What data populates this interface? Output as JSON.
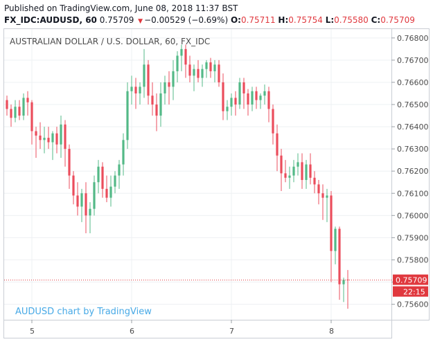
{
  "header": {
    "published": "Published on TradingView.com, June 08, 2018 11:37 BST",
    "symbol": "FX_IDC:AUDUSD, 60",
    "last": "0.75709",
    "change": "−0.00529 (−0.69%)",
    "o_label": "O:",
    "o_value": "0.75711",
    "h_label": "H:",
    "h_value": "0.75754",
    "l_label": "L:",
    "l_value": "0.75580",
    "c_label": "C:",
    "c_value": "0.75709"
  },
  "colors": {
    "up": "#53b987",
    "down": "#eb4d5c",
    "grid": "#eef0f3",
    "axis_text": "#4a4a4a",
    "price_label_bg": "#e0383e",
    "watermark": "#47a9e6"
  },
  "chart_data": {
    "type": "candlestick",
    "title": "AUSTRALIAN DOLLAR / U.S. DOLLAR, 60, FX_IDC",
    "watermark": "AUDUSD chart by TradingView",
    "ylim": [
      0.7553,
      0.7684
    ],
    "y_ticks": [
      0.756,
      0.757,
      0.758,
      0.759,
      0.76,
      0.761,
      0.762,
      0.763,
      0.764,
      0.765,
      0.766,
      0.767,
      0.768
    ],
    "y_tick_labels": [
      "0.75600",
      "0.75700",
      "0.75800",
      "0.75900",
      "0.76000",
      "0.76100",
      "0.76200",
      "0.76300",
      "0.76400",
      "0.76500",
      "0.76600",
      "0.76700",
      "0.76800"
    ],
    "x_ticks": [
      {
        "label": "5",
        "index": 6
      },
      {
        "label": "6",
        "index": 30
      },
      {
        "label": "7",
        "index": 54
      },
      {
        "label": "8",
        "index": 78
      }
    ],
    "last_price_label": "0.75709",
    "countdown_label": "22:15",
    "last_price": 0.75709,
    "candles": [
      [
        0.7652,
        0.7654,
        0.7645,
        0.7648
      ],
      [
        0.7648,
        0.765,
        0.764,
        0.7644
      ],
      [
        0.7644,
        0.7652,
        0.7642,
        0.7649
      ],
      [
        0.7649,
        0.7652,
        0.7643,
        0.7645
      ],
      [
        0.7645,
        0.7655,
        0.7643,
        0.7653
      ],
      [
        0.7653,
        0.7656,
        0.7645,
        0.7651
      ],
      [
        0.7651,
        0.7652,
        0.7632,
        0.7638
      ],
      [
        0.7638,
        0.764,
        0.7626,
        0.7636
      ],
      [
        0.7636,
        0.7642,
        0.763,
        0.7634
      ],
      [
        0.7634,
        0.764,
        0.7628,
        0.7635
      ],
      [
        0.7635,
        0.764,
        0.763,
        0.7633
      ],
      [
        0.7633,
        0.7638,
        0.7625,
        0.7637
      ],
      [
        0.7637,
        0.764,
        0.7628,
        0.7632
      ],
      [
        0.7632,
        0.7645,
        0.7626,
        0.7641
      ],
      [
        0.7641,
        0.7643,
        0.7622,
        0.763
      ],
      [
        0.763,
        0.7632,
        0.7612,
        0.7618
      ],
      [
        0.7618,
        0.762,
        0.7605,
        0.7609
      ],
      [
        0.7609,
        0.7615,
        0.76,
        0.7604
      ],
      [
        0.7604,
        0.7612,
        0.7597,
        0.761
      ],
      [
        0.761,
        0.7615,
        0.7592,
        0.76
      ],
      [
        0.76,
        0.7606,
        0.7592,
        0.7603
      ],
      [
        0.7603,
        0.7618,
        0.76,
        0.7615
      ],
      [
        0.7615,
        0.7625,
        0.761,
        0.7622
      ],
      [
        0.7622,
        0.7624,
        0.7608,
        0.7612
      ],
      [
        0.7612,
        0.7618,
        0.7606,
        0.7608
      ],
      [
        0.7608,
        0.7618,
        0.7604,
        0.7613
      ],
      [
        0.7613,
        0.762,
        0.761,
        0.7618
      ],
      [
        0.7618,
        0.7625,
        0.7612,
        0.7623
      ],
      [
        0.7623,
        0.7637,
        0.7618,
        0.7634
      ],
      [
        0.7634,
        0.766,
        0.763,
        0.7656
      ],
      [
        0.7656,
        0.7663,
        0.765,
        0.7658
      ],
      [
        0.7658,
        0.7662,
        0.7648,
        0.7655
      ],
      [
        0.7655,
        0.766,
        0.765,
        0.7658
      ],
      [
        0.7658,
        0.7675,
        0.7653,
        0.7668
      ],
      [
        0.7668,
        0.767,
        0.765,
        0.7654
      ],
      [
        0.7654,
        0.766,
        0.7645,
        0.765
      ],
      [
        0.765,
        0.7655,
        0.7638,
        0.7645
      ],
      [
        0.7645,
        0.766,
        0.764,
        0.7655
      ],
      [
        0.7655,
        0.7663,
        0.765,
        0.766
      ],
      [
        0.766,
        0.7665,
        0.765,
        0.7658
      ],
      [
        0.7658,
        0.767,
        0.7652,
        0.7665
      ],
      [
        0.7665,
        0.7674,
        0.766,
        0.7672
      ],
      [
        0.7672,
        0.7677,
        0.7665,
        0.7675
      ],
      [
        0.7675,
        0.7677,
        0.7662,
        0.7668
      ],
      [
        0.7668,
        0.7672,
        0.766,
        0.7663
      ],
      [
        0.7663,
        0.7668,
        0.7656,
        0.7666
      ],
      [
        0.7666,
        0.767,
        0.766,
        0.7662
      ],
      [
        0.7662,
        0.7668,
        0.7658,
        0.7666
      ],
      [
        0.7666,
        0.767,
        0.7662,
        0.7669
      ],
      [
        0.7669,
        0.7671,
        0.7662,
        0.7665
      ],
      [
        0.7665,
        0.767,
        0.766,
        0.7668
      ],
      [
        0.7668,
        0.767,
        0.7658,
        0.766
      ],
      [
        0.766,
        0.7664,
        0.7643,
        0.7647
      ],
      [
        0.7647,
        0.7652,
        0.7643,
        0.7649
      ],
      [
        0.7649,
        0.7655,
        0.7645,
        0.7653
      ],
      [
        0.7653,
        0.7656,
        0.7645,
        0.765
      ],
      [
        0.765,
        0.7662,
        0.7648,
        0.766
      ],
      [
        0.766,
        0.7662,
        0.7648,
        0.7655
      ],
      [
        0.7655,
        0.7657,
        0.7645,
        0.765
      ],
      [
        0.765,
        0.7658,
        0.7647,
        0.7656
      ],
      [
        0.7656,
        0.7658,
        0.7648,
        0.7652
      ],
      [
        0.7652,
        0.7655,
        0.7648,
        0.7654
      ],
      [
        0.7654,
        0.7659,
        0.765,
        0.7656
      ],
      [
        0.7656,
        0.7658,
        0.7642,
        0.7648
      ],
      [
        0.7648,
        0.765,
        0.7632,
        0.7637
      ],
      [
        0.7637,
        0.7641,
        0.762,
        0.7627
      ],
      [
        0.7627,
        0.763,
        0.7611,
        0.7619
      ],
      [
        0.7619,
        0.7625,
        0.7615,
        0.7617
      ],
      [
        0.7617,
        0.7622,
        0.7612,
        0.7618
      ],
      [
        0.7618,
        0.7625,
        0.7615,
        0.7622
      ],
      [
        0.7622,
        0.7628,
        0.7618,
        0.7624
      ],
      [
        0.7624,
        0.7628,
        0.7612,
        0.7616
      ],
      [
        0.7616,
        0.7625,
        0.7612,
        0.7623
      ],
      [
        0.7623,
        0.7628,
        0.7614,
        0.7617
      ],
      [
        0.7617,
        0.762,
        0.761,
        0.7614
      ],
      [
        0.7614,
        0.7616,
        0.7605,
        0.761
      ],
      [
        0.761,
        0.7614,
        0.7598,
        0.7608
      ],
      [
        0.7608,
        0.7612,
        0.7597,
        0.7609
      ],
      [
        0.7609,
        0.7611,
        0.757,
        0.7584
      ],
      [
        0.7584,
        0.7595,
        0.7578,
        0.7594
      ],
      [
        0.7594,
        0.7595,
        0.7562,
        0.7569
      ],
      [
        0.7569,
        0.7572,
        0.7561,
        0.7571
      ],
      [
        0.75711,
        0.75754,
        0.7558,
        0.75709
      ]
    ]
  }
}
